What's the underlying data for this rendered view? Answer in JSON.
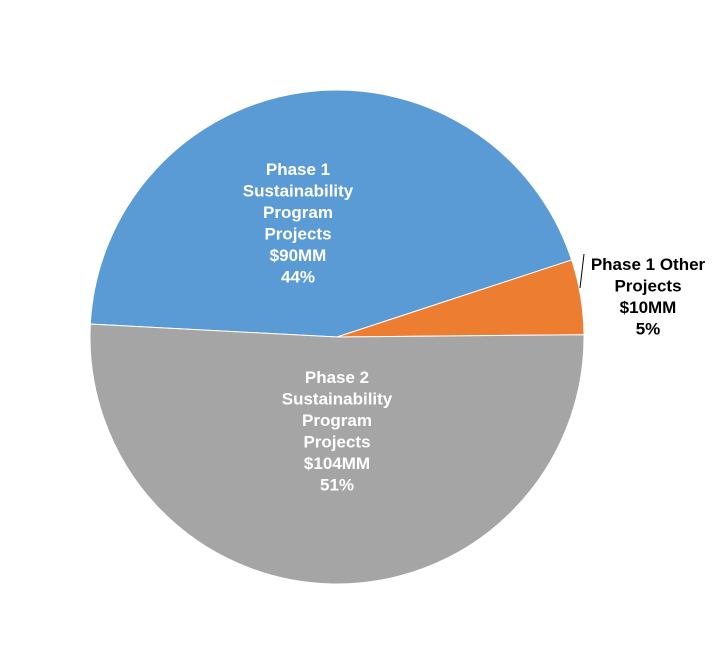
{
  "chart_data": {
    "type": "pie",
    "title": "",
    "legend": "none",
    "slices": [
      {
        "label_lines": [
          "Phase 1",
          "Sustainability",
          "Program",
          "Projects"
        ],
        "amount": "$90MM",
        "percent_label": "44%",
        "value": 90,
        "color": "#5B9BD5",
        "label_color": "#ffffff"
      },
      {
        "label_lines": [
          "Phase 1 Other",
          "Projects"
        ],
        "amount": "$10MM",
        "percent_label": "5%",
        "value": 10,
        "color": "#ED7D31",
        "label_color": "#000000"
      },
      {
        "label_lines": [
          "Phase 2",
          "Sustainability",
          "Program",
          "Projects"
        ],
        "amount": "$104MM",
        "percent_label": "51%",
        "value": 104,
        "color": "#A5A5A5",
        "label_color": "#ffffff"
      }
    ]
  }
}
